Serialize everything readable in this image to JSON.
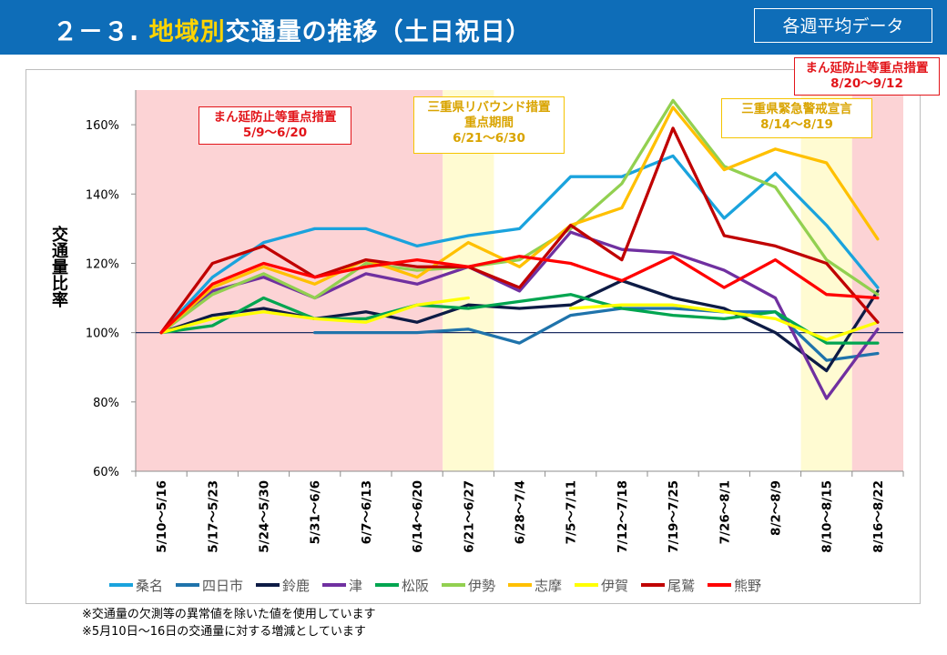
{
  "header": {
    "title_prefix": "２－３.",
    "title_highlight": "地域別",
    "title_rest": "交通量の推移（土日祝日）",
    "badge": "各週平均データ"
  },
  "annotations": {
    "red1_line1": "まん延防止等重点措置",
    "red1_line2": "5/9～6/20",
    "yel1_line1": "三重県リバウンド措置",
    "yel1_line2": "重点期間",
    "yel1_line3": "6/21～6/30",
    "yel2_line1": "三重県緊急警戒宣言",
    "yel2_line2": "8/14～8/19",
    "red2_line1": "まん延防止等重点措置",
    "red2_line2": "8/20～9/12"
  },
  "notes": {
    "line1": "※交通量の欠測等の異常値を除いた値を使用しています",
    "line2": "※5月10日～16日の交通量に対する増減としています"
  },
  "colors": {
    "header_bg": "#0e6db8",
    "title_highlight": "#ffd400",
    "pink_band": "#fcd3d5",
    "yellow_band": "#fffbd2",
    "baseline": "#1f2f64"
  },
  "chart_data": {
    "type": "line",
    "ylabel": "交通量比率",
    "ylim": [
      60,
      170
    ],
    "yticks": [
      60,
      80,
      100,
      120,
      140,
      160
    ],
    "ytick_labels": [
      "60%",
      "80%",
      "100%",
      "120%",
      "140%",
      "160%"
    ],
    "grid": false,
    "legend_position": "bottom",
    "categories": [
      "5/10～5/16",
      "5/17～5/23",
      "5/24～5/30",
      "5/31～6/6",
      "6/7～6/13",
      "6/14～6/20",
      "6/21～6/27",
      "6/28～7/4",
      "7/5～7/11",
      "7/12～7/18",
      "7/19～7/25",
      "7/26～8/1",
      "8/2～8/9",
      "8/10～8/15",
      "8/16～8/22"
    ],
    "bands": [
      {
        "color": "pink",
        "from_index": 0,
        "to_index": 5
      },
      {
        "color": "yellow",
        "from_index": 6,
        "to_index": 6
      },
      {
        "color": "yellow",
        "from_index": 13,
        "to_index": 13
      },
      {
        "color": "pink",
        "from_index": 14,
        "to_index": 14
      }
    ],
    "series": [
      {
        "name": "桑名",
        "color": "#1aa3dd",
        "values": [
          100,
          116,
          126,
          130,
          130,
          125,
          128,
          130,
          145,
          145,
          151,
          133,
          146,
          131,
          113
        ]
      },
      {
        "name": "四日市",
        "color": "#1f73ab",
        "values": [
          null,
          null,
          null,
          100,
          100,
          100,
          101,
          97,
          105,
          107,
          107,
          106,
          106,
          92,
          94
        ]
      },
      {
        "name": "鈴鹿",
        "color": "#0d1b45",
        "values": [
          100,
          105,
          107,
          104,
          106,
          103,
          108,
          107,
          108,
          115,
          110,
          107,
          100,
          89,
          112
        ]
      },
      {
        "name": "津",
        "color": "#7030a0",
        "values": [
          100,
          112,
          116,
          110,
          117,
          114,
          119,
          112,
          129,
          124,
          123,
          118,
          110,
          81,
          101
        ]
      },
      {
        "name": "松阪",
        "color": "#00a550",
        "values": [
          100,
          102,
          110,
          104,
          104,
          108,
          107,
          109,
          111,
          107,
          105,
          104,
          106,
          97,
          97
        ]
      },
      {
        "name": "伊勢",
        "color": "#92d050",
        "values": [
          100,
          111,
          117,
          110,
          120,
          118,
          119,
          121,
          130,
          143,
          167,
          148,
          142,
          121,
          111
        ]
      },
      {
        "name": "志摩",
        "color": "#ffc000",
        "values": [
          100,
          113,
          119,
          114,
          121,
          116,
          126,
          119,
          131,
          136,
          165,
          147,
          153,
          149,
          127
        ]
      },
      {
        "name": "伊賀",
        "color": "#ffff00",
        "values": [
          100,
          104,
          106,
          104,
          103,
          108,
          110,
          null,
          107,
          108,
          108,
          106,
          104,
          98,
          103
        ]
      },
      {
        "name": "尾鷲",
        "color": "#c00000",
        "values": [
          100,
          120,
          125,
          116,
          121,
          119,
          119,
          113,
          131,
          121,
          159,
          128,
          125,
          120,
          103
        ]
      },
      {
        "name": "熊野",
        "color": "#ff0000",
        "values": [
          100,
          114,
          120,
          116,
          119,
          121,
          119,
          122,
          120,
          115,
          122,
          113,
          121,
          111,
          110
        ]
      }
    ]
  }
}
